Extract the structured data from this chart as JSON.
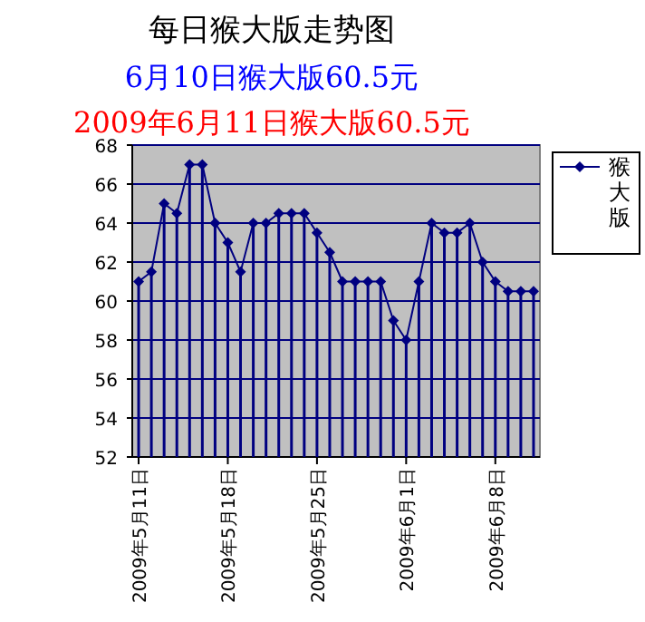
{
  "chart_data": {
    "type": "line",
    "title": "每日猴大版走势图",
    "subtitle": "6月10日猴大版60.5元",
    "annotations": [
      "2009年6月11日猴大版60.5元"
    ],
    "x": [
      "2009-05-11",
      "2009-05-12",
      "2009-05-13",
      "2009-05-14",
      "2009-05-15",
      "2009-05-16",
      "2009-05-17",
      "2009-05-18",
      "2009-05-19",
      "2009-05-20",
      "2009-05-21",
      "2009-05-22",
      "2009-05-23",
      "2009-05-24",
      "2009-05-25",
      "2009-05-26",
      "2009-05-27",
      "2009-05-28",
      "2009-05-29",
      "2009-05-30",
      "2009-05-31",
      "2009-06-01",
      "2009-06-02",
      "2009-06-03",
      "2009-06-04",
      "2009-06-05",
      "2009-06-06",
      "2009-06-07",
      "2009-06-08",
      "2009-06-09",
      "2009-06-10",
      "2009-06-11"
    ],
    "series": [
      {
        "color": "#000080",
        "values": [
          61,
          61.5,
          65,
          64.5,
          67,
          67,
          64,
          63,
          61.5,
          64,
          64,
          64.5,
          64.5,
          64.5,
          63.5,
          62.5,
          61,
          61,
          61,
          61,
          59,
          58,
          61,
          64,
          63.5,
          63.5,
          64,
          62,
          61,
          60.5,
          60.5,
          60.5
        ]
      },
      {
        "type": "lollipop",
        "name": "猴大版",
        "color": "#000080",
        "marker": "diamond",
        "values": [
          61,
          61.5,
          65,
          64.5,
          67,
          67,
          64,
          63,
          61.5,
          64,
          64,
          64.5,
          64.5,
          64.5,
          63.5,
          62.5,
          61,
          61,
          61,
          61,
          59,
          58,
          61,
          64,
          63.5,
          63.5,
          64,
          62,
          61,
          60.5,
          60.5,
          60.5
        ]
      }
    ],
    "xlim": [
      "2009-05-10T12:00",
      "2009-06-11T12:00"
    ],
    "xticks": [
      {
        "value": "2009-05-11",
        "label": "2009年5月11日"
      },
      {
        "value": "2009-05-18",
        "label": "2009年5月18日"
      },
      {
        "value": "2009-05-25",
        "label": "2009年5月25日"
      },
      {
        "value": "2009-06-01",
        "label": "2009年6月1日"
      },
      {
        "value": "2009-06-08",
        "label": "2009年6月8日"
      }
    ],
    "ylim": [
      52,
      68
    ],
    "yticks": [
      52,
      54,
      56,
      58,
      60,
      62,
      64,
      66,
      68
    ],
    "grid": "y",
    "legend": "right",
    "line_style": "solid"
  }
}
